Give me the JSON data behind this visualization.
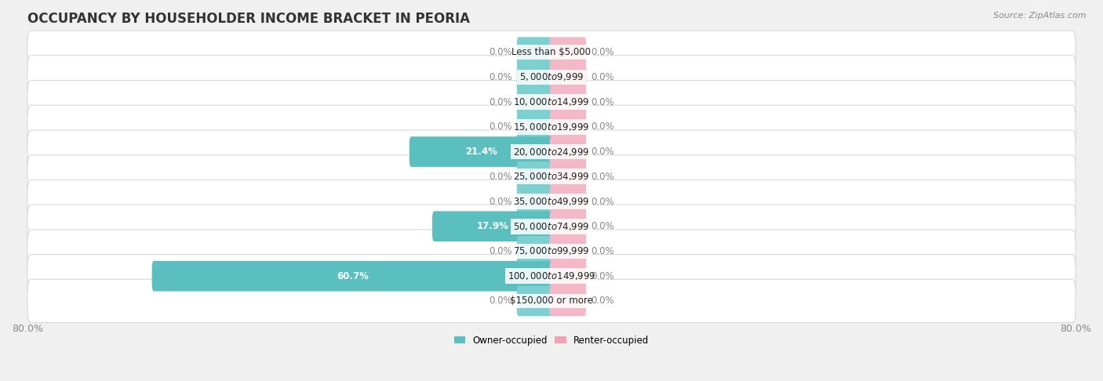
{
  "title": "OCCUPANCY BY HOUSEHOLDER INCOME BRACKET IN PEORIA",
  "source": "Source: ZipAtlas.com",
  "categories": [
    "Less than $5,000",
    "$5,000 to $9,999",
    "$10,000 to $14,999",
    "$15,000 to $19,999",
    "$20,000 to $24,999",
    "$25,000 to $34,999",
    "$35,000 to $49,999",
    "$50,000 to $74,999",
    "$75,000 to $99,999",
    "$100,000 to $149,999",
    "$150,000 or more"
  ],
  "owner_values": [
    0.0,
    0.0,
    0.0,
    0.0,
    21.4,
    0.0,
    0.0,
    17.9,
    0.0,
    60.7,
    0.0
  ],
  "renter_values": [
    0.0,
    0.0,
    0.0,
    0.0,
    0.0,
    0.0,
    0.0,
    0.0,
    0.0,
    0.0,
    0.0
  ],
  "owner_color": "#5bbfbf",
  "renter_color": "#f4a0b4",
  "owner_stub_color": "#7dd0d0",
  "renter_stub_color": "#f4b8c8",
  "label_color_on_bar": "#ffffff",
  "label_color_off_bar": "#888888",
  "background_color": "#f0f0f0",
  "row_bg_color": "#ffffff",
  "row_border_color": "#d8d8d8",
  "xlim": 80.0,
  "stub_size": 5.0,
  "bar_height": 0.62,
  "title_fontsize": 12,
  "label_fontsize": 8.5,
  "tick_fontsize": 9,
  "source_fontsize": 8,
  "category_fontsize": 8.5,
  "legend_fontsize": 8.5
}
